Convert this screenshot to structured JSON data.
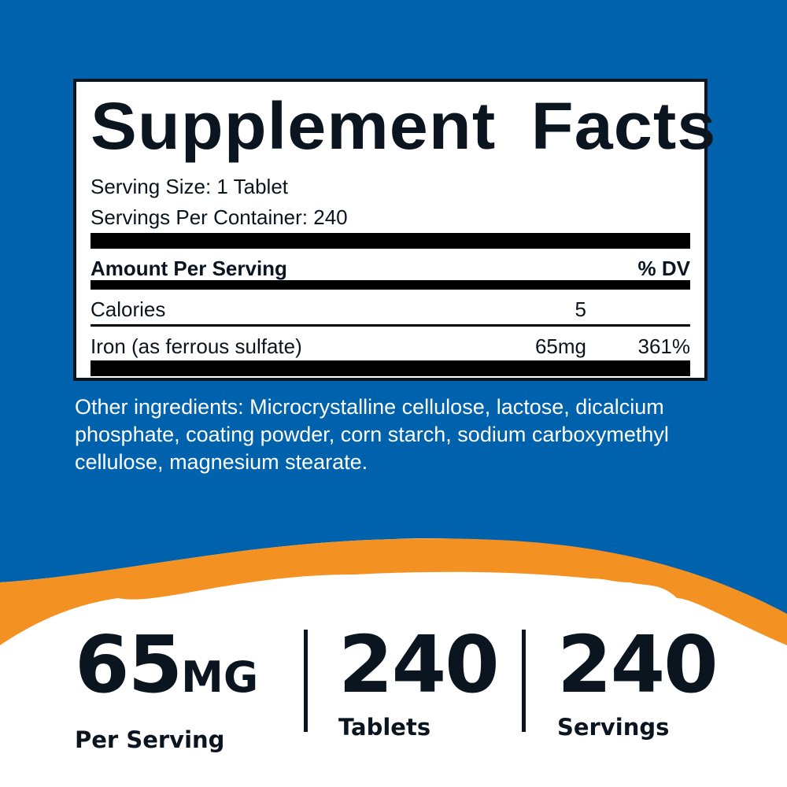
{
  "colors": {
    "blue": "#0062AD",
    "orange": "#F39223",
    "ink": "#0B1520"
  },
  "facts": {
    "title": "Supplement Facts",
    "serving_size": "Serving Size: 1 Tablet",
    "servings_per_container": "Servings Per Container: 240",
    "header": {
      "amount": "Amount Per Serving",
      "dv": "% DV"
    },
    "rows": [
      {
        "name": "Calories",
        "amount": "5",
        "dv": ""
      },
      {
        "name": "Iron (as ferrous sulfate)",
        "amount": "65mg",
        "dv": "361%"
      }
    ]
  },
  "other_ingredients": "Other ingredients: Microcrystalline cellulose, lactose, dicalcium phosphate, coating powder, corn starch, sodium carboxymethyl cellulose, magnesium stearate.",
  "stats": [
    {
      "value": "65",
      "unit": "MG",
      "label": "Per Serving"
    },
    {
      "value": "240",
      "unit": "",
      "label": "Tablets"
    },
    {
      "value": "240",
      "unit": "",
      "label": "Servings"
    }
  ]
}
